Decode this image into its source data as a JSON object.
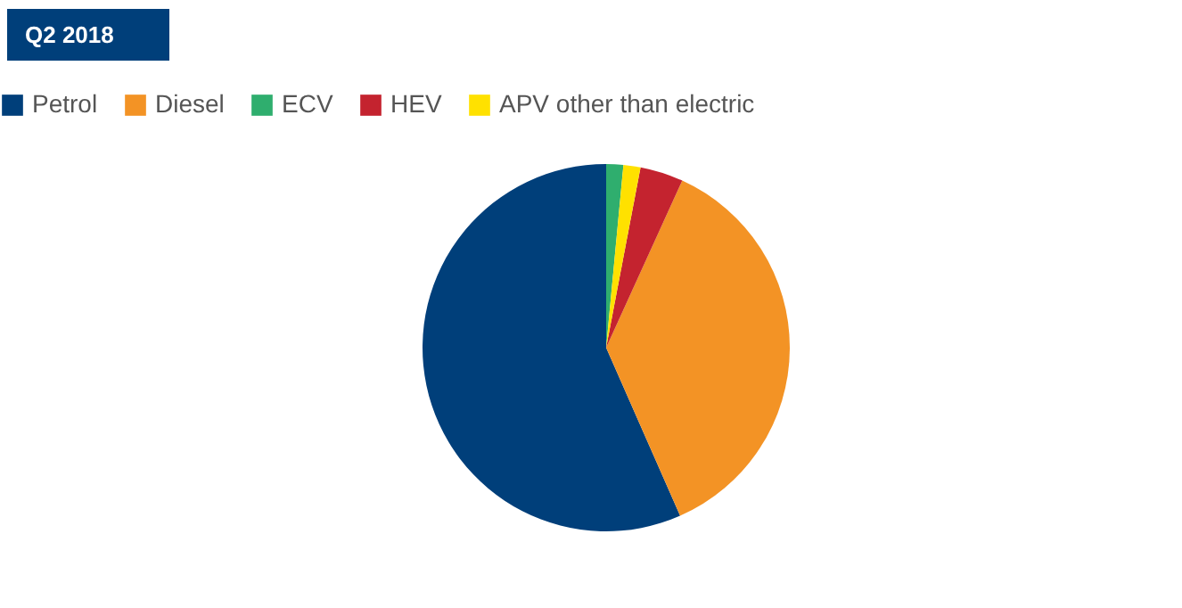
{
  "chart_data": {
    "type": "pie",
    "title": "Q2 2018",
    "categories": [
      "Petrol",
      "Diesel",
      "ECV",
      "HEV",
      "APV other than electric"
    ],
    "values": [
      56.6,
      36.6,
      1.5,
      3.8,
      1.5
    ],
    "colors": [
      "#003f7a",
      "#f39325",
      "#2fae6e",
      "#c4232f",
      "#ffe100"
    ],
    "legend": "top left"
  }
}
